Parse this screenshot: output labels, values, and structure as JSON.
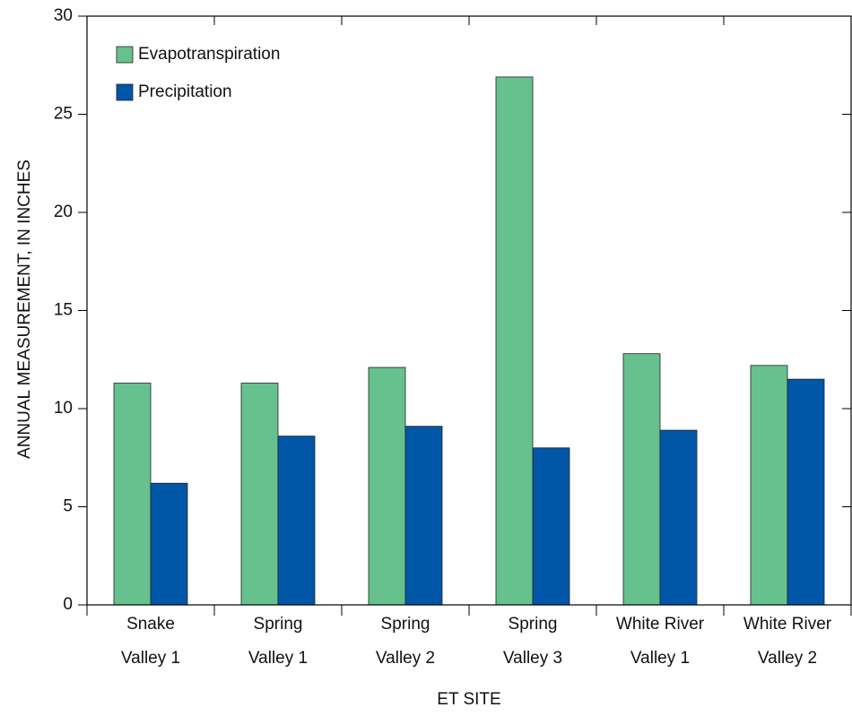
{
  "chart_data": {
    "type": "bar",
    "y_label": "ANNUAL MEASUREMENT, IN INCHES",
    "x_label": "ET SITE",
    "categories": [
      [
        "Snake",
        "Valley 1"
      ],
      [
        "Spring",
        "Valley 1"
      ],
      [
        "Spring",
        "Valley 2"
      ],
      [
        "Spring",
        "Valley 3"
      ],
      [
        "White River",
        "Valley 1"
      ],
      [
        "White River",
        "Valley 2"
      ]
    ],
    "series": [
      {
        "name": "Evapotranspiration",
        "color": "#66c18e",
        "values": [
          11.3,
          11.3,
          12.1,
          26.9,
          12.8,
          12.2
        ]
      },
      {
        "name": "Precipitation",
        "color": "#0057a8",
        "values": [
          6.2,
          8.6,
          9.1,
          8.0,
          8.9,
          11.5
        ]
      }
    ],
    "ylim": [
      0,
      30
    ],
    "yticks": [
      0,
      5,
      10,
      15,
      20,
      25,
      30
    ],
    "legend": "top-left"
  }
}
